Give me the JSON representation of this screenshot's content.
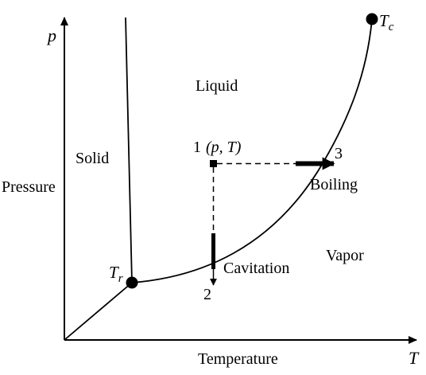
{
  "axes": {
    "y_symbol": "p",
    "x_symbol": "T",
    "y_label": "Pressure",
    "x_label": "Temperature"
  },
  "regions": {
    "liquid": "Liquid",
    "solid": "Solid",
    "vapor": "Vapor"
  },
  "points": {
    "triple": {
      "symbol": "T",
      "subscript": "r"
    },
    "critical": {
      "symbol": "T",
      "subscript": "c"
    },
    "state1": {
      "number": "1",
      "coords": "(p, T)"
    },
    "state2": {
      "number": "2"
    },
    "state3": {
      "number": "3"
    }
  },
  "processes": {
    "boiling": "Boiling",
    "cavitation": "Cavitation"
  },
  "colors": {
    "ink": "#000000",
    "background": "#ffffff"
  }
}
